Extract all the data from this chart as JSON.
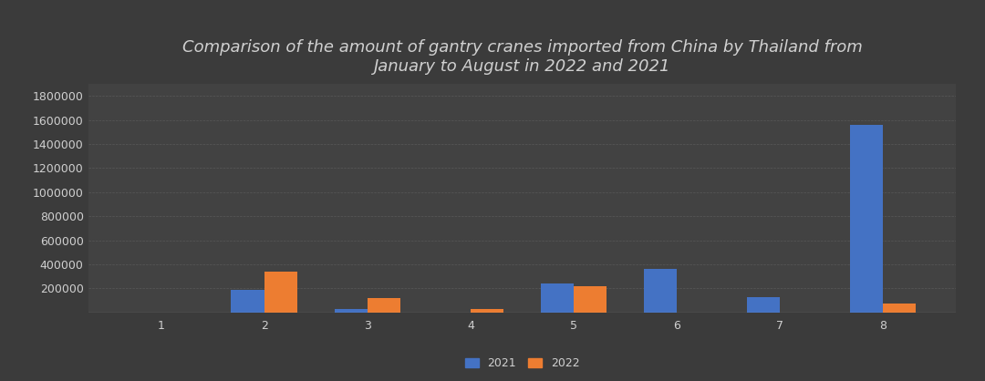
{
  "title": "Comparison of the amount of gantry cranes imported from China by Thailand from\nJanuary to August in 2022 and 2021",
  "categories": [
    1,
    2,
    3,
    4,
    5,
    6,
    7,
    8
  ],
  "values_2021": [
    0,
    185000,
    30000,
    0,
    240000,
    360000,
    125000,
    1560000
  ],
  "values_2022": [
    0,
    340000,
    120000,
    25000,
    220000,
    0,
    0,
    75000
  ],
  "color_2021": "#4472C4",
  "color_2022": "#ED7D31",
  "background_color": "#3b3b3b",
  "plot_background": "#424242",
  "text_color": "#d0d0d0",
  "grid_color": "#666666",
  "ylim": [
    0,
    1900000
  ],
  "yticks": [
    200000,
    400000,
    600000,
    800000,
    1000000,
    1200000,
    1400000,
    1600000,
    1800000
  ],
  "legend_labels": [
    "2021",
    "2022"
  ],
  "title_fontsize": 13,
  "tick_fontsize": 9,
  "legend_fontsize": 9,
  "bar_width": 0.32
}
